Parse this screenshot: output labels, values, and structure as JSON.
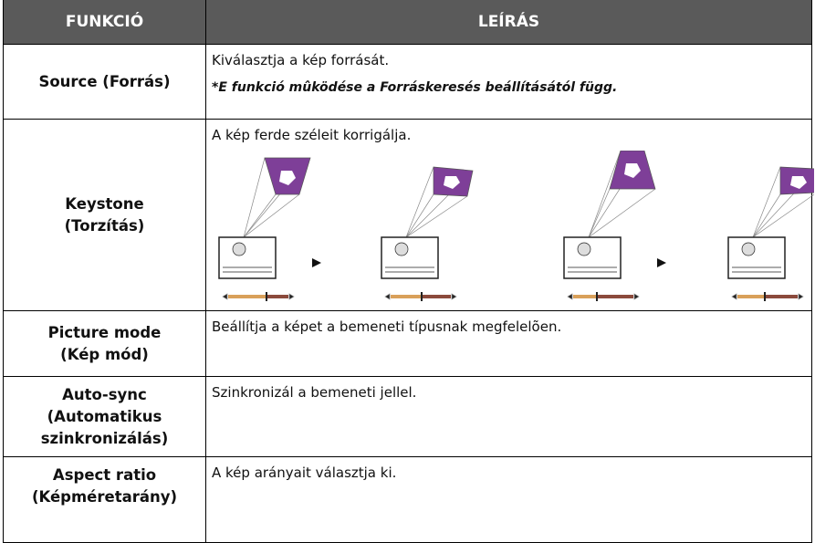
{
  "table": {
    "header": [
      "FUNKCIÓ",
      "LEÍRÁS"
    ],
    "rows": [
      {
        "function": [
          "Source (Forrás)"
        ],
        "description": "Kiválasztja a kép forrását.",
        "note": "*E funkció mûködése a Forráskeresés beállításától függ."
      },
      {
        "function": [
          "Keystone",
          "(Torzítás)"
        ],
        "description": "A kép ferde széleit korrigálja."
      },
      {
        "function": [
          "Picture mode",
          "(Kép mód)"
        ],
        "description": "Beállítja a képet a bemeneti típusnak megfelelõen."
      },
      {
        "function": [
          "Auto-sync",
          "(Automatikus",
          "szinkronizálás)"
        ],
        "description": "Szinkronizál a bemeneti jellel."
      },
      {
        "function": [
          "Aspect ratio",
          "(Képméretarány)"
        ],
        "description": "A kép arányait választja ki."
      }
    ]
  }
}
